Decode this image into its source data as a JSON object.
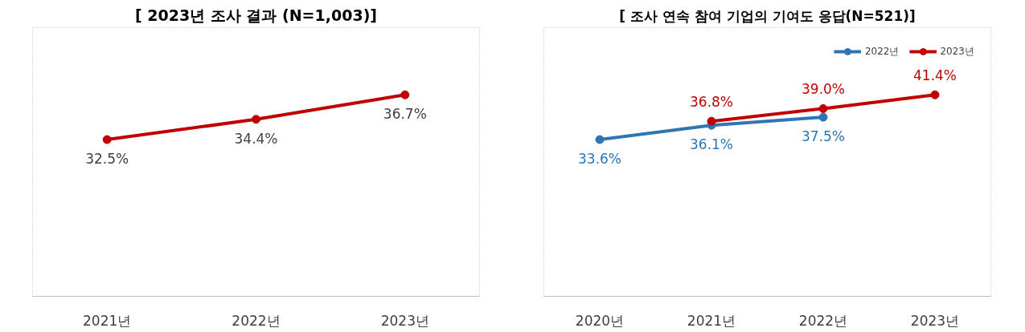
{
  "chart_data": [
    {
      "type": "line",
      "title": "[ 2023년 조사 결과 (N=1,003)]",
      "categories": [
        "2021년",
        "2022년",
        "2023년"
      ],
      "series": [
        {
          "color": "#c00000",
          "values": [
            32.5,
            34.4,
            36.7
          ],
          "value_labels": [
            "32.5%",
            "34.4%",
            "36.7%"
          ]
        }
      ],
      "tick_labels": "x",
      "marker": "circle",
      "grid": false,
      "legend": false
    },
    {
      "type": "line",
      "title": "[ 조사 연속 참여 기업의 기여도 응답(N=521)]",
      "categories": [
        "2020년",
        "2021년",
        "2022년",
        "2023년"
      ],
      "series": [
        {
          "name": "2022년",
          "color": "#2e75b6",
          "values": [
            33.6,
            36.1,
            37.5,
            null
          ],
          "value_labels": [
            "33.6%",
            "36.1%",
            "37.5%",
            null
          ]
        },
        {
          "name": "2023년",
          "color": "#c00000",
          "values": [
            null,
            36.8,
            39.0,
            41.4
          ],
          "value_labels": [
            null,
            "36.8%",
            "39.0%",
            "41.4%"
          ]
        }
      ],
      "tick_labels": "x",
      "marker": "circle",
      "grid": false,
      "legend": "top right"
    }
  ]
}
